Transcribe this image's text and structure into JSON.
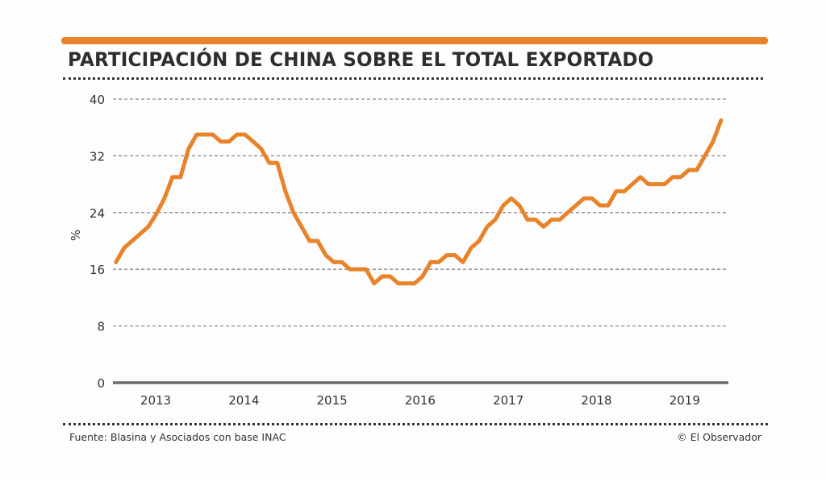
{
  "header": {
    "title": "PARTICIPACIÓN DE CHINA SOBRE EL TOTAL EXPORTADO",
    "accent_color": "#e8832a"
  },
  "footer": {
    "source": "Fuente: Blasina y Asociados con base INAC",
    "credit": "© El Observador"
  },
  "chart_data": {
    "type": "line",
    "title": "PARTICIPACIÓN DE CHINA SOBRE EL TOTAL EXPORTADO",
    "xlabel": "",
    "ylabel": "%",
    "ylim": [
      0,
      40
    ],
    "xlim": [
      2012.55,
      2019.5
    ],
    "yticks": [
      0,
      8,
      16,
      24,
      32,
      40
    ],
    "ytick_labels": [
      "0",
      "8",
      "16",
      "24",
      "32",
      "40"
    ],
    "xticks": [
      2013,
      2014,
      2015,
      2016,
      2017,
      2018,
      2019
    ],
    "xtick_labels": [
      "2013",
      "2014",
      "2015",
      "2016",
      "2017",
      "2018",
      "2019"
    ],
    "grid": "horizontal-dashed",
    "line_color": "#e8832a",
    "series": [
      {
        "name": "Participación de China (%)",
        "x_start": 2012.55,
        "x_step": 0.0915,
        "values": [
          17,
          19,
          20,
          21,
          22,
          23.8,
          26,
          29,
          29,
          33,
          35,
          35,
          35,
          34,
          34,
          35,
          35,
          34,
          33,
          31,
          31,
          27,
          24,
          22,
          20,
          20,
          18,
          17,
          17,
          16,
          16,
          16,
          14,
          15,
          15,
          14,
          14,
          14,
          15,
          17,
          17,
          18,
          18,
          17,
          19,
          20,
          22,
          23,
          25,
          26,
          25,
          23,
          23,
          22,
          23,
          23,
          24,
          25,
          26,
          26,
          25,
          25,
          27,
          27,
          28,
          29,
          28,
          28,
          28,
          29,
          29,
          30,
          30,
          32,
          34,
          37
        ]
      }
    ]
  }
}
